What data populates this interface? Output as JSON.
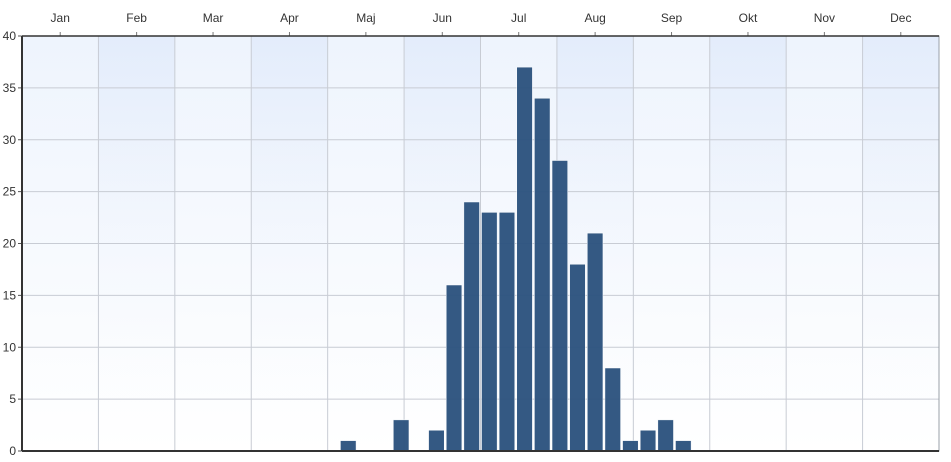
{
  "chart_data": {
    "type": "bar",
    "x_tick_labels": [
      "Jan",
      "Feb",
      "Mar",
      "Apr",
      "Maj",
      "Jun",
      "Jul",
      "Aug",
      "Sep",
      "Okt",
      "Nov",
      "Dec"
    ],
    "x_unit": "week of year",
    "xlim": [
      0,
      52
    ],
    "y_ticks": [
      0,
      5,
      10,
      15,
      20,
      25,
      30,
      35,
      40
    ],
    "ylim": [
      0,
      40
    ],
    "grid": true,
    "legend": "none",
    "title": "",
    "xlabel": "",
    "ylabel": "",
    "bar_color": "#2e5480",
    "bars": [
      {
        "week": 18,
        "value": 1
      },
      {
        "week": 21,
        "value": 3
      },
      {
        "week": 23,
        "value": 2
      },
      {
        "week": 24,
        "value": 16
      },
      {
        "week": 25,
        "value": 24
      },
      {
        "week": 26,
        "value": 23
      },
      {
        "week": 27,
        "value": 23
      },
      {
        "week": 28,
        "value": 37
      },
      {
        "week": 29,
        "value": 34
      },
      {
        "week": 30,
        "value": 28
      },
      {
        "week": 31,
        "value": 18
      },
      {
        "week": 32,
        "value": 21
      },
      {
        "week": 33,
        "value": 8
      },
      {
        "week": 34,
        "value": 1
      },
      {
        "week": 35,
        "value": 2
      },
      {
        "week": 36,
        "value": 3
      },
      {
        "week": 37,
        "value": 1
      }
    ]
  }
}
